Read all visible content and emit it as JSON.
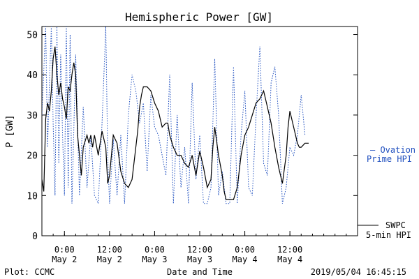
{
  "chart_data": {
    "type": "line",
    "title": "Hemispheric Power [GW]",
    "xlabel": "Date and Time",
    "ylabel": "P [GW]",
    "x_unit": "hours since May 1 18:00",
    "xlim": [
      0,
      84
    ],
    "ylim": [
      0,
      52
    ],
    "yticks": [
      0,
      10,
      20,
      30,
      40,
      50
    ],
    "xticks": [
      {
        "x": 6,
        "time": "0:00",
        "date": "May 2"
      },
      {
        "x": 18,
        "time": "12:00",
        "date": "May 2"
      },
      {
        "x": 30,
        "time": "0:00",
        "date": "May 3"
      },
      {
        "x": 42,
        "time": "12:00",
        "date": "May 3"
      },
      {
        "x": 54,
        "time": "0:00",
        "date": "May 4"
      },
      {
        "x": 66,
        "time": "12:00",
        "date": "May 4"
      }
    ],
    "grid": false,
    "series": [
      {
        "name": "SWPC 5-min HPI",
        "color": "#000000",
        "style": "solid",
        "x": [
          0,
          0.5,
          1,
          1.5,
          2,
          2.5,
          3,
          3.5,
          4,
          4.5,
          5,
          5.5,
          6,
          6.5,
          7,
          7.5,
          8,
          8.5,
          9,
          9.5,
          10,
          10.5,
          11,
          12,
          12.5,
          13,
          13.5,
          14,
          15,
          16,
          17,
          17.5,
          18,
          19,
          20,
          21,
          22,
          23,
          24,
          24.5,
          25,
          25.5,
          26,
          26.5,
          27,
          28,
          29,
          30,
          31,
          32,
          33,
          33.5,
          34,
          35,
          36,
          37,
          38,
          39,
          40,
          41,
          42,
          43,
          44,
          45,
          45.5,
          46,
          47,
          48,
          48.5,
          49,
          50,
          51,
          52,
          53,
          54,
          55,
          56,
          57,
          58,
          59,
          60,
          61,
          62,
          63,
          64,
          65,
          65.5,
          66,
          67,
          67.5,
          68,
          68.5,
          69,
          70,
          71
        ],
        "y": [
          14,
          11,
          29,
          33,
          31,
          36,
          44,
          47,
          40,
          35,
          38,
          34,
          32,
          29,
          37,
          36,
          40,
          43,
          40,
          25,
          20,
          15,
          22,
          25,
          23,
          25,
          22,
          25,
          20,
          26,
          22,
          13,
          15,
          25,
          23,
          16,
          13,
          12,
          14,
          18,
          22,
          26,
          32,
          35,
          37,
          37,
          36,
          33,
          31,
          27,
          28,
          28,
          25,
          22,
          20,
          20,
          18,
          17,
          20,
          15,
          21,
          17,
          12,
          14,
          22,
          27,
          20,
          15,
          11,
          9,
          9,
          9,
          12,
          20,
          25,
          27,
          30,
          33,
          34,
          36,
          32,
          28,
          22,
          17,
          13,
          20,
          27,
          31,
          27,
          25,
          23,
          22,
          22,
          23,
          23
        ]
      },
      {
        "name": "Ovation Prime HPI",
        "color": "#1f4fbf",
        "style": "dotted",
        "x": [
          0,
          1,
          1.5,
          2,
          2.5,
          3,
          3.5,
          4,
          4.5,
          5,
          5.5,
          6,
          6.5,
          7,
          7.5,
          8,
          9,
          10,
          11,
          12,
          13,
          14,
          15,
          16,
          17,
          17.5,
          18,
          19,
          20,
          21,
          22,
          23,
          24,
          25,
          26,
          27,
          28,
          29,
          30,
          31,
          32,
          33,
          34,
          35,
          36,
          37,
          38,
          39,
          40,
          41,
          42,
          43,
          44,
          45,
          46,
          47,
          48,
          49,
          50,
          51,
          52,
          53,
          54,
          55,
          56,
          57,
          58,
          59,
          60,
          61,
          62,
          63,
          64,
          65,
          66,
          67,
          68,
          69,
          70
        ],
        "y": [
          30,
          52,
          22,
          38,
          52,
          28,
          10,
          52,
          18,
          45,
          25,
          10,
          52,
          12,
          50,
          8,
          45,
          10,
          32,
          12,
          25,
          10,
          8,
          28,
          52,
          20,
          8,
          24,
          10,
          25,
          8,
          30,
          40,
          36,
          28,
          33,
          16,
          35,
          27,
          25,
          20,
          15,
          40,
          8,
          30,
          12,
          22,
          8,
          38,
          14,
          25,
          8,
          8,
          12,
          44,
          10,
          16,
          8,
          8,
          42,
          8,
          25,
          36,
          12,
          10,
          30,
          47,
          18,
          15,
          38,
          42,
          30,
          8,
          12,
          22,
          20,
          25,
          35,
          25
        ]
      }
    ]
  },
  "labels": {
    "legend_blue_1": "— Ovation",
    "legend_blue_2": "Prime HPI",
    "legend_black_1": "SWPC",
    "legend_black_2": "5-min HPI",
    "footer_left": "Plot: CCMC",
    "footer_right": "2019/05/04 16:45:15"
  }
}
